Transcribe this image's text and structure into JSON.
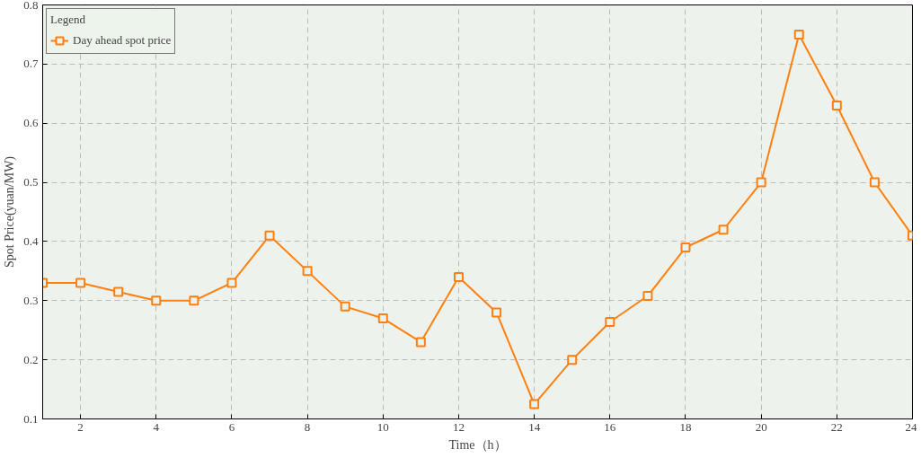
{
  "chart_data": {
    "type": "line",
    "xlabel": "Time（h）",
    "ylabel": "Spot Price(yuan/MW)",
    "legend_title": "Legend",
    "x": [
      1,
      2,
      3,
      4,
      5,
      6,
      7,
      8,
      9,
      10,
      11,
      12,
      13,
      14,
      15,
      16,
      17,
      18,
      19,
      20,
      21,
      22,
      23,
      24
    ],
    "series": [
      {
        "name": "Day ahead spot price",
        "color": "#ff7f0e",
        "values": [
          0.33,
          0.33,
          0.315,
          0.3,
          0.3,
          0.33,
          0.41,
          0.35,
          0.29,
          0.27,
          0.23,
          0.34,
          0.28,
          0.125,
          0.2,
          0.264,
          0.308,
          0.39,
          0.42,
          0.5,
          0.75,
          0.63,
          0.5,
          0.41
        ]
      }
    ],
    "xlim": [
      1,
      24
    ],
    "xticks": [
      2,
      4,
      6,
      8,
      10,
      12,
      14,
      16,
      18,
      20,
      22,
      24
    ],
    "ylim": [
      0.1,
      0.8
    ],
    "yticks": [
      0.1,
      0.2,
      0.3,
      0.4,
      0.5,
      0.6,
      0.7,
      0.8
    ],
    "grid": true,
    "legend": "top left",
    "marker": "square",
    "line_style": "solid"
  }
}
